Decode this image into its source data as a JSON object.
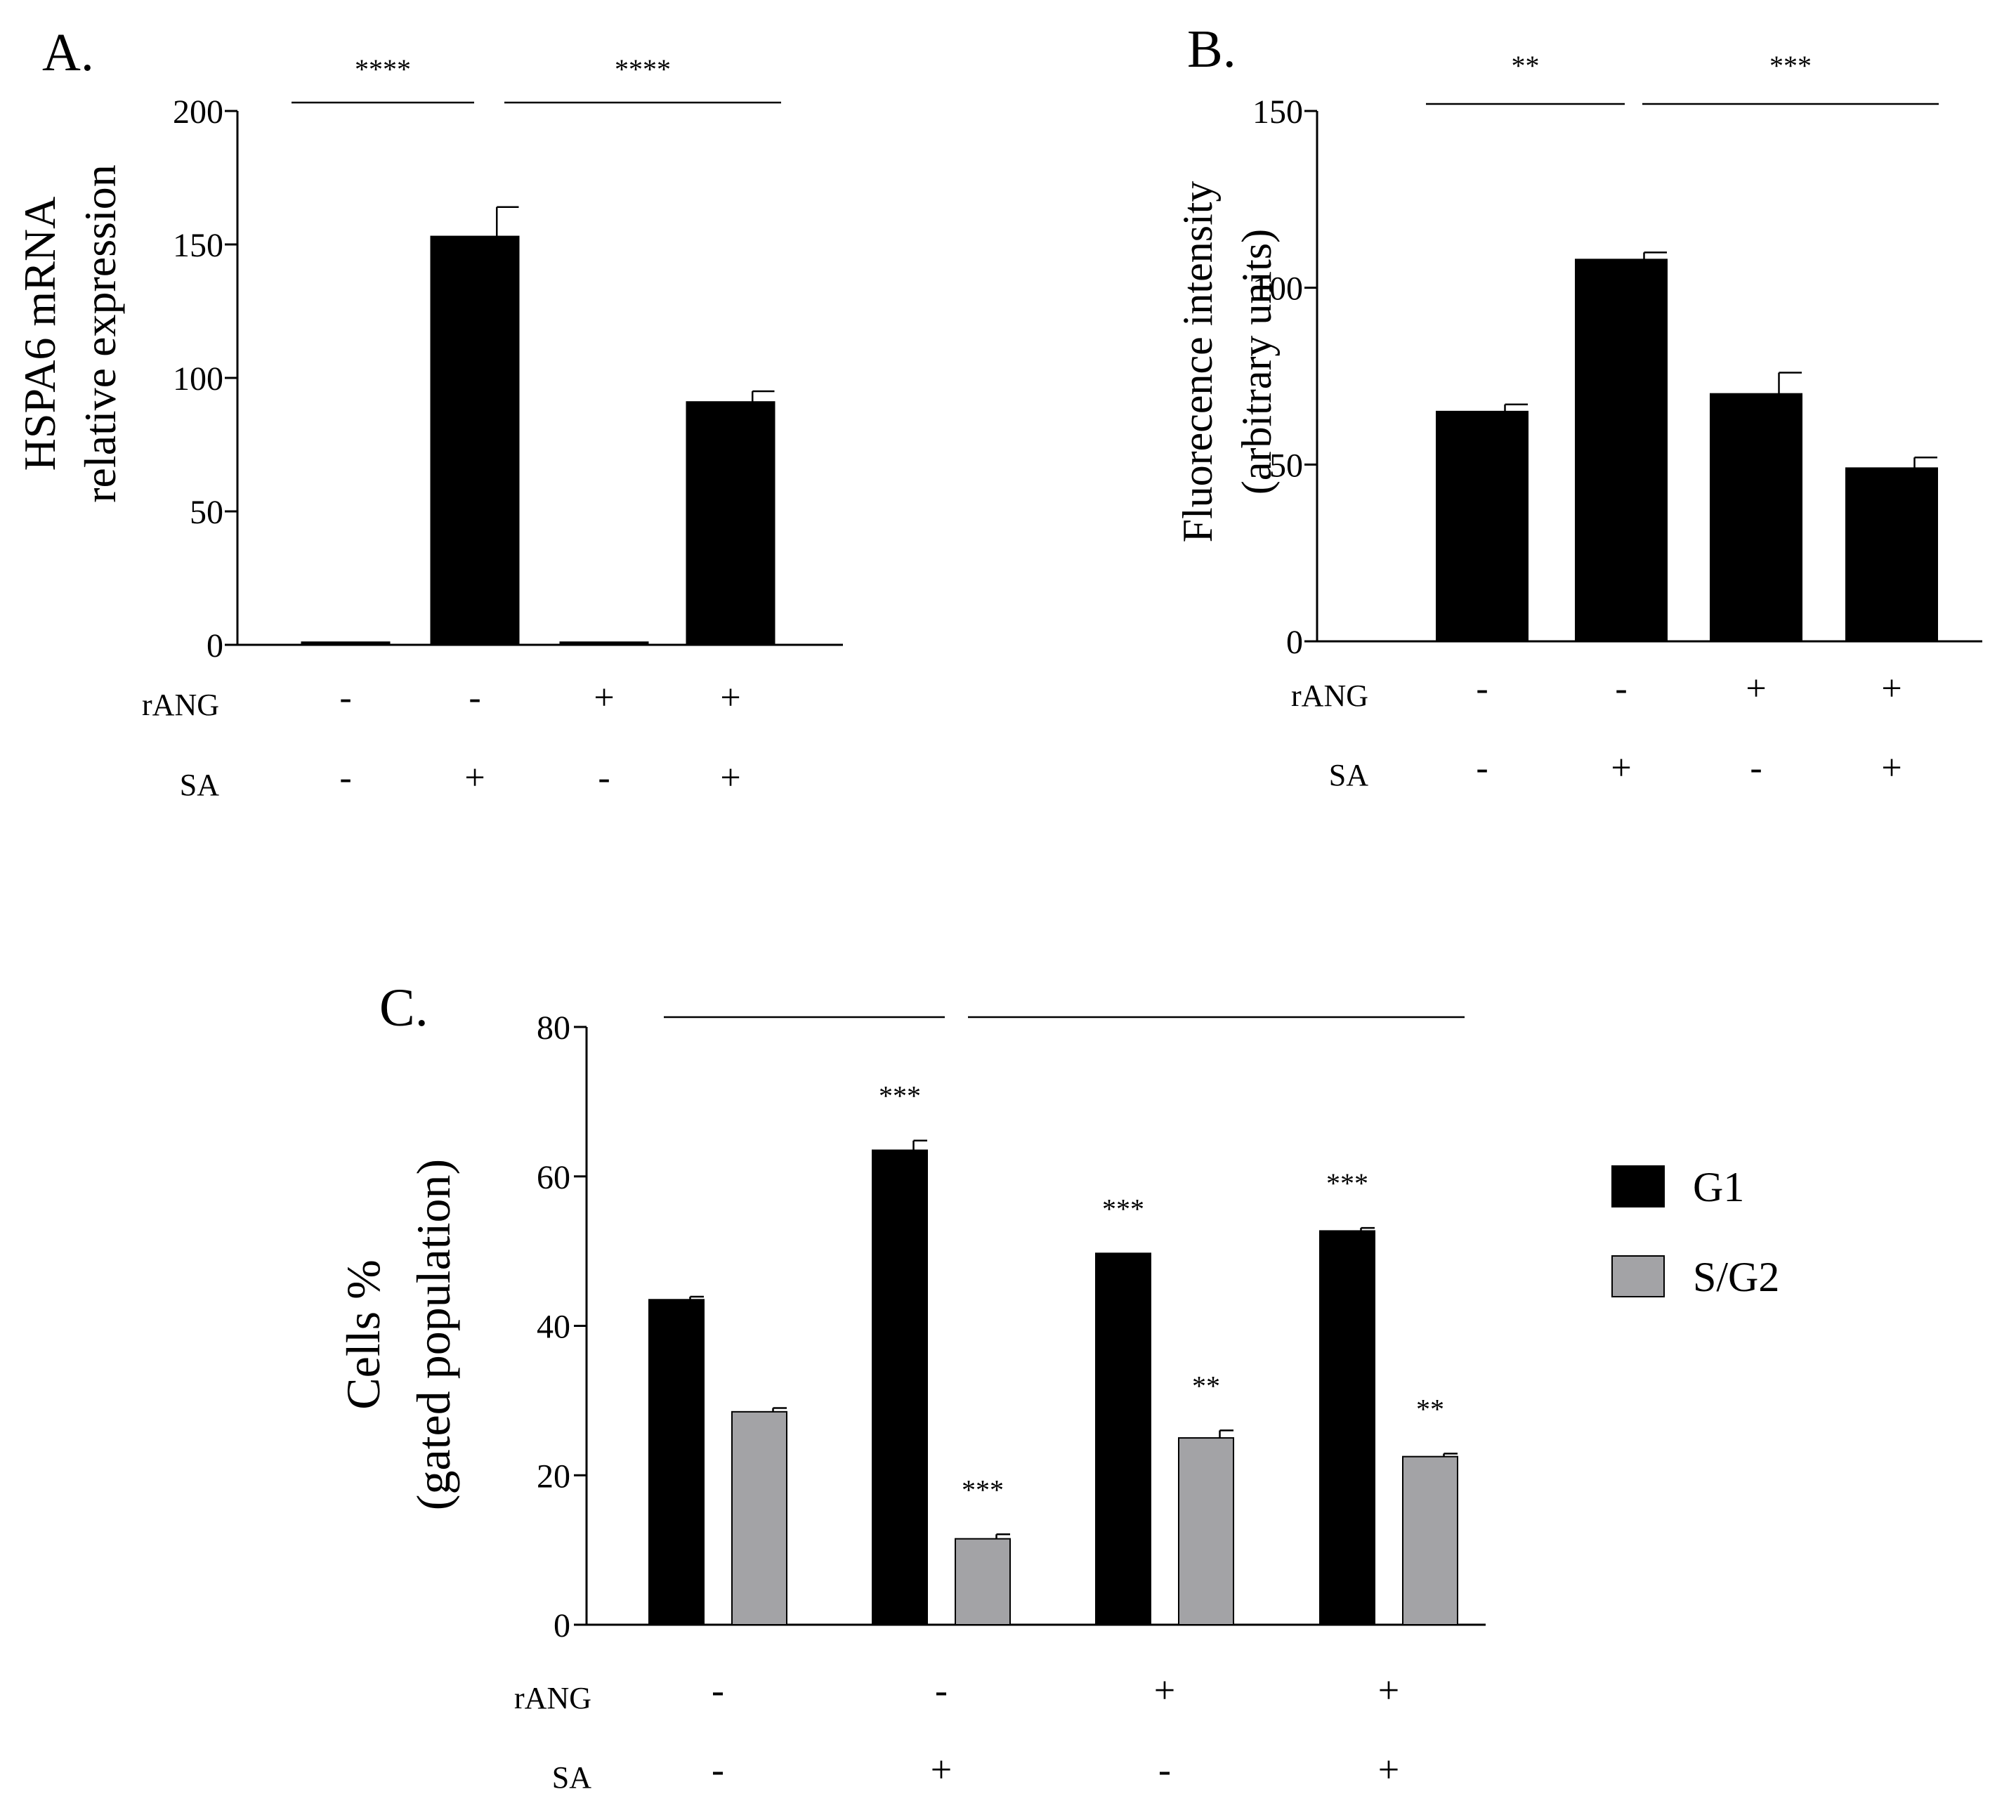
{
  "chart_data": [
    {
      "type": "bar",
      "panel_label": "A.",
      "ylabel_lines": [
        "HSPA6 mRNA",
        "relative expression"
      ],
      "ylim": [
        0,
        200
      ],
      "yticks": [
        0,
        50,
        100,
        150,
        200
      ],
      "treatment_rows": [
        {
          "label": "rANG",
          "signs": [
            "-",
            "-",
            "+",
            "+"
          ]
        },
        {
          "label": "SA",
          "signs": [
            "-",
            "+",
            "-",
            "+"
          ]
        }
      ],
      "series": [
        {
          "name": "HSPA6",
          "color": "#000000",
          "values": [
            1,
            153,
            1,
            91
          ],
          "errors": [
            0,
            11,
            0,
            4
          ]
        }
      ],
      "significance": [
        {
          "label": "****",
          "from": 0,
          "to": 1
        },
        {
          "label": "****",
          "from": 1,
          "to": 3
        }
      ]
    },
    {
      "type": "bar",
      "panel_label": "B.",
      "ylabel_lines": [
        "Fluorecence intensity",
        "(arbitrary units)"
      ],
      "ylim": [
        0,
        150
      ],
      "yticks": [
        0,
        50,
        100,
        150
      ],
      "treatment_rows": [
        {
          "label": "rANG",
          "signs": [
            "-",
            "-",
            "+",
            "+"
          ]
        },
        {
          "label": "SA",
          "signs": [
            "-",
            "+",
            "-",
            "+"
          ]
        }
      ],
      "series": [
        {
          "name": "Fluorescence",
          "color": "#000000",
          "values": [
            65,
            108,
            70,
            49
          ],
          "errors": [
            2,
            2,
            6,
            3
          ]
        }
      ],
      "significance": [
        {
          "label": "**",
          "from": 0,
          "to": 1
        },
        {
          "label": "***",
          "from": 1,
          "to": 3
        }
      ]
    },
    {
      "type": "bar",
      "panel_label": "C.",
      "ylabel_lines": [
        "Cells %",
        "(gated population)"
      ],
      "ylim": [
        0,
        80
      ],
      "yticks": [
        0,
        20,
        40,
        60,
        80
      ],
      "treatment_rows": [
        {
          "label": "rANG",
          "signs": [
            "-",
            "-",
            "+",
            "+"
          ]
        },
        {
          "label": "SA",
          "signs": [
            "-",
            "+",
            "-",
            "+"
          ]
        }
      ],
      "series": [
        {
          "name": "G1",
          "color": "#000000",
          "values": [
            43.5,
            63.5,
            49.7,
            52.7
          ],
          "errors": [
            0.4,
            1.3,
            0,
            0.4
          ],
          "annotations": [
            "",
            "***",
            "***",
            "***"
          ]
        },
        {
          "name": "S/G2",
          "color": "#a3a3a6",
          "values": [
            28.5,
            11.5,
            25,
            22.5
          ],
          "errors": [
            0.5,
            0.6,
            1,
            0.4
          ],
          "annotations": [
            "",
            "***",
            "**",
            "**"
          ]
        }
      ],
      "legend": {
        "placement": "right",
        "entries": [
          "G1",
          "S/G2"
        ]
      },
      "significance": [
        {
          "label": "",
          "from": 0,
          "to": 1
        },
        {
          "label": "",
          "from": 1,
          "to": 3
        }
      ]
    }
  ]
}
